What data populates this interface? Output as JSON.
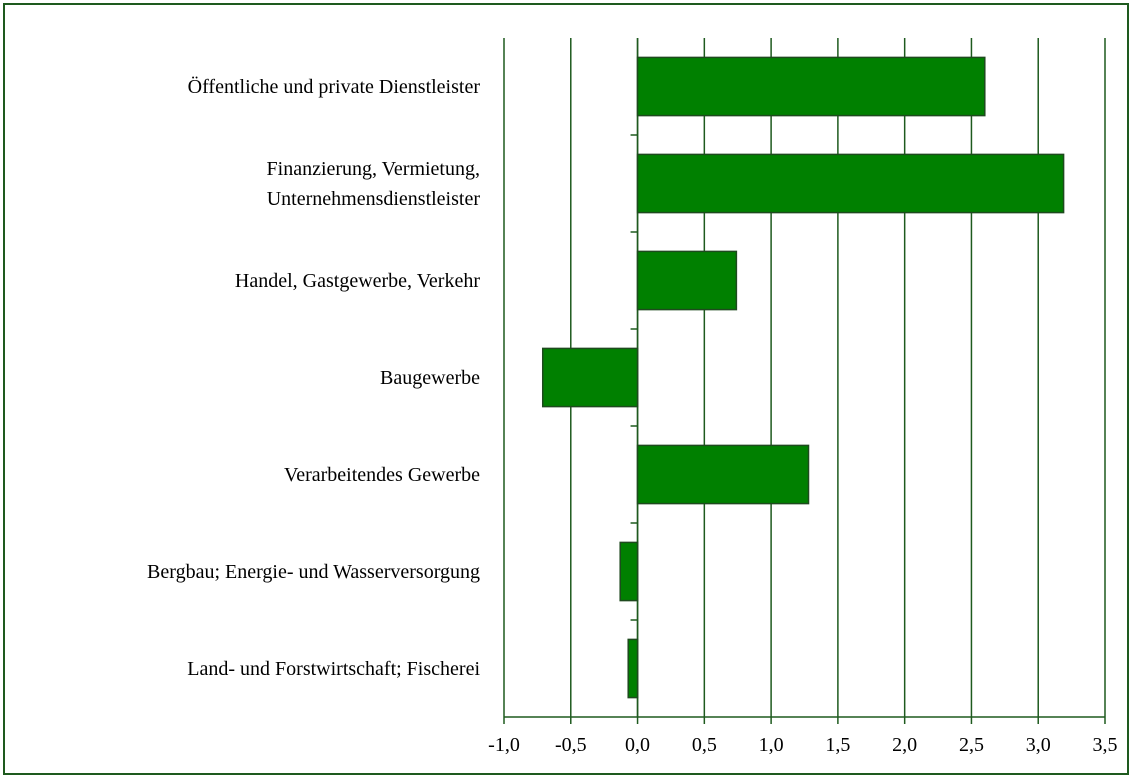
{
  "chart_data": {
    "type": "barh",
    "categories": [
      "Öffentliche und private Dienstleister",
      "Finanzierung, Vermietung,\nUnternehmensdienstleister",
      "Handel, Gastgewerbe, Verkehr",
      "Baugewerbe",
      "Verarbeitendes Gewerbe",
      "Bergbau; Energie- und Wasserversorgung",
      "Land- und Forstwirtschaft; Fischerei"
    ],
    "values": [
      2.6,
      3.19,
      0.74,
      -0.71,
      1.28,
      -0.13,
      -0.07
    ],
    "color": "#008000",
    "xlim": [
      -1.0,
      3.5
    ],
    "xticks": [
      {
        "value": -1.0,
        "label": "-1,0"
      },
      {
        "value": -0.5,
        "label": "-0,5"
      },
      {
        "value": 0.0,
        "label": "0,0"
      },
      {
        "value": 0.5,
        "label": "0,5"
      },
      {
        "value": 1.0,
        "label": "1,0"
      },
      {
        "value": 1.5,
        "label": "1,5"
      },
      {
        "value": 2.0,
        "label": "2,0"
      },
      {
        "value": 2.5,
        "label": "2,5"
      },
      {
        "value": 3.0,
        "label": "3,0"
      },
      {
        "value": 3.5,
        "label": "3,5"
      }
    ],
    "grid": true
  }
}
